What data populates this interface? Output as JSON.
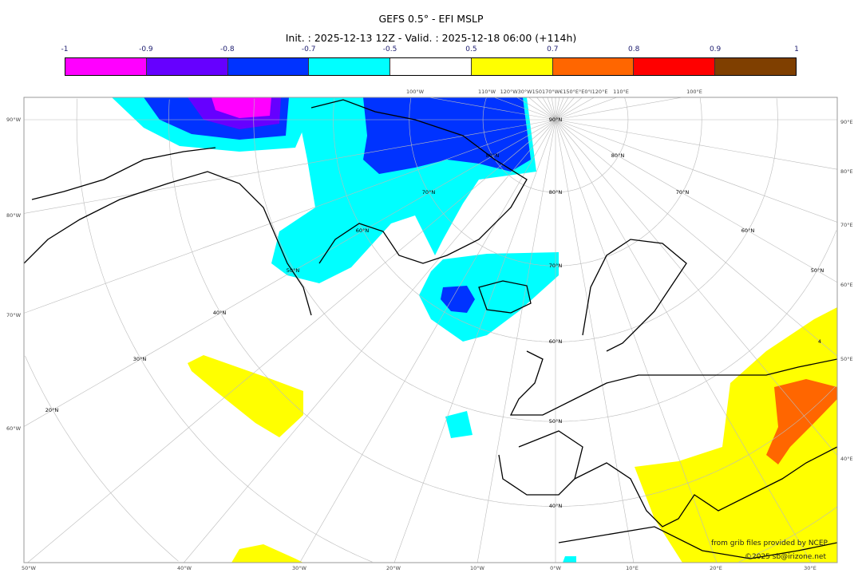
{
  "title": "GEFS 0.5° - EFI MSLP",
  "subtitle": "Init. : 2025-12-13 12Z - Valid. : 2025-12-18 06:00 (+114h)",
  "colorbar": {
    "labels": [
      "-1",
      "-0.9",
      "-0.8",
      "-0.7",
      "-0.5",
      "0.5",
      "0.7",
      "0.8",
      "0.9",
      "1"
    ],
    "colors": [
      "#ff00ff",
      "#6600ff",
      "#0033ff",
      "#00ffff",
      "#ffffff",
      "#ffff00",
      "#ff6600",
      "#ff0000",
      "#7f3f00"
    ]
  },
  "map": {
    "projection": "polar stereographic",
    "left_labels": [
      "90°W",
      "80°W",
      "70°W",
      "60°W"
    ],
    "right_labels": [
      "90°E",
      "80°E",
      "70°E",
      "60°E",
      "50°E",
      "40°E"
    ],
    "bottom_labels": [
      "50°W",
      "40°W",
      "30°W",
      "20°W",
      "10°W",
      "0°W",
      "10°E",
      "20°E",
      "30°E"
    ],
    "top_labels": [
      "100°W",
      "110°W",
      "120°W30°W150170°W€150°E°E0°I120°E",
      "110°E",
      "100°E"
    ],
    "lat_labels": [
      "90°N",
      "80°N",
      "70°N",
      "60°N",
      "50°N",
      "40°N",
      "80°N",
      "70°N",
      "60°N",
      "50°N",
      "40°N",
      "30°N",
      "20°N",
      "80°N",
      "70°N",
      "60°N",
      "50°N",
      "4"
    ]
  },
  "credits": {
    "source": "from grib files provided by NCEP",
    "copyright": "©2025 sb@irizone.net"
  }
}
